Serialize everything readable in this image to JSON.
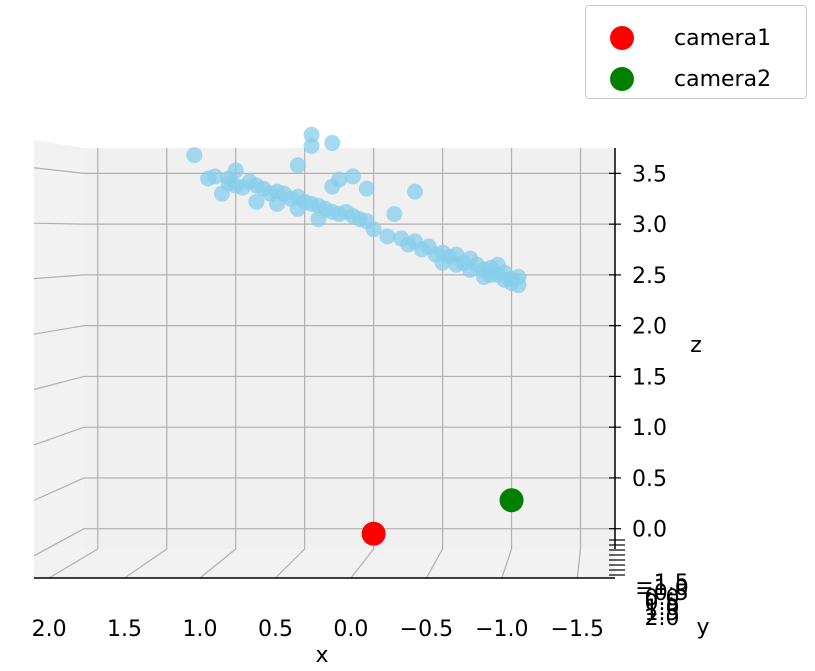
{
  "chart_data": {
    "type": "scatter",
    "projection": "3d",
    "xlabel": "x",
    "ylabel": "y",
    "zlabel": "z",
    "x_ticks": [
      "2.0",
      "1.5",
      "1.0",
      "0.5",
      "0.0",
      "−0.5",
      "−1.0",
      "−1.5"
    ],
    "z_ticks": [
      "0.0",
      "0.5",
      "1.0",
      "1.5",
      "2.0",
      "2.5",
      "3.0",
      "3.5"
    ],
    "y_ticks": [
      "−1.5",
      "−1.0",
      "−0.5",
      "0.0",
      "0.5",
      "1.0",
      "1.5",
      "2.0"
    ],
    "xlim": [
      2.1,
      -1.75
    ],
    "zlim": [
      -0.2,
      3.75
    ],
    "grid": true,
    "legend_position": "top-right",
    "series": [
      {
        "name": "camera1",
        "color": "#ff0000",
        "points": [
          {
            "x": 0.0,
            "z": -0.05
          }
        ]
      },
      {
        "name": "camera2",
        "color": "#008000",
        "points": [
          {
            "x": -1.0,
            "z": 0.28
          }
        ]
      },
      {
        "name": "",
        "color": "#87ceeb",
        "points": [
          {
            "x": 1.3,
            "z": 3.68
          },
          {
            "x": 1.0,
            "z": 3.53
          },
          {
            "x": 1.05,
            "z": 3.45
          },
          {
            "x": 0.45,
            "z": 3.88
          },
          {
            "x": 0.45,
            "z": 3.77
          },
          {
            "x": 0.3,
            "z": 3.8
          },
          {
            "x": 0.55,
            "z": 3.58
          },
          {
            "x": 0.25,
            "z": 3.44
          },
          {
            "x": 0.15,
            "z": 3.47
          },
          {
            "x": 0.05,
            "z": 3.35
          },
          {
            "x": 0.3,
            "z": 3.37
          },
          {
            "x": -0.3,
            "z": 3.32
          },
          {
            "x": -0.15,
            "z": 3.1
          },
          {
            "x": 1.2,
            "z": 3.45
          },
          {
            "x": 1.15,
            "z": 3.47
          },
          {
            "x": 1.05,
            "z": 3.4
          },
          {
            "x": 1.0,
            "z": 3.38
          },
          {
            "x": 0.95,
            "z": 3.36
          },
          {
            "x": 0.9,
            "z": 3.42
          },
          {
            "x": 0.85,
            "z": 3.38
          },
          {
            "x": 0.8,
            "z": 3.35
          },
          {
            "x": 0.75,
            "z": 3.3
          },
          {
            "x": 0.7,
            "z": 3.32
          },
          {
            "x": 0.65,
            "z": 3.3
          },
          {
            "x": 0.6,
            "z": 3.25
          },
          {
            "x": 0.55,
            "z": 3.27
          },
          {
            "x": 0.5,
            "z": 3.22
          },
          {
            "x": 0.45,
            "z": 3.2
          },
          {
            "x": 0.4,
            "z": 3.18
          },
          {
            "x": 0.35,
            "z": 3.15
          },
          {
            "x": 0.3,
            "z": 3.12
          },
          {
            "x": 0.25,
            "z": 3.1
          },
          {
            "x": 0.2,
            "z": 3.12
          },
          {
            "x": 0.15,
            "z": 3.08
          },
          {
            "x": 0.1,
            "z": 3.05
          },
          {
            "x": 0.05,
            "z": 3.03
          },
          {
            "x": 0.55,
            "z": 3.15
          },
          {
            "x": 0.4,
            "z": 3.05
          },
          {
            "x": 1.1,
            "z": 3.3
          },
          {
            "x": 0.85,
            "z": 3.22
          },
          {
            "x": 0.7,
            "z": 3.2
          },
          {
            "x": 0.0,
            "z": 2.95
          },
          {
            "x": -0.1,
            "z": 2.88
          },
          {
            "x": -0.2,
            "z": 2.86
          },
          {
            "x": -0.3,
            "z": 2.83
          },
          {
            "x": -0.4,
            "z": 2.78
          },
          {
            "x": -0.5,
            "z": 2.72
          },
          {
            "x": -0.55,
            "z": 2.68
          },
          {
            "x": -0.6,
            "z": 2.7
          },
          {
            "x": -0.65,
            "z": 2.62
          },
          {
            "x": -0.7,
            "z": 2.66
          },
          {
            "x": -0.75,
            "z": 2.6
          },
          {
            "x": -0.8,
            "z": 2.55
          },
          {
            "x": -0.85,
            "z": 2.57
          },
          {
            "x": -0.9,
            "z": 2.5
          },
          {
            "x": -0.95,
            "z": 2.52
          },
          {
            "x": -1.0,
            "z": 2.46
          },
          {
            "x": -1.05,
            "z": 2.48
          },
          {
            "x": -0.35,
            "z": 2.75
          },
          {
            "x": -0.45,
            "z": 2.7
          },
          {
            "x": -0.7,
            "z": 2.55
          },
          {
            "x": -0.85,
            "z": 2.5
          },
          {
            "x": -0.95,
            "z": 2.45
          },
          {
            "x": -1.0,
            "z": 2.42
          },
          {
            "x": -0.6,
            "z": 2.6
          },
          {
            "x": -0.9,
            "z": 2.6
          },
          {
            "x": -1.05,
            "z": 2.4
          },
          {
            "x": -0.25,
            "z": 2.8
          },
          {
            "x": -0.5,
            "z": 2.62
          },
          {
            "x": -0.8,
            "z": 2.48
          }
        ]
      }
    ]
  }
}
